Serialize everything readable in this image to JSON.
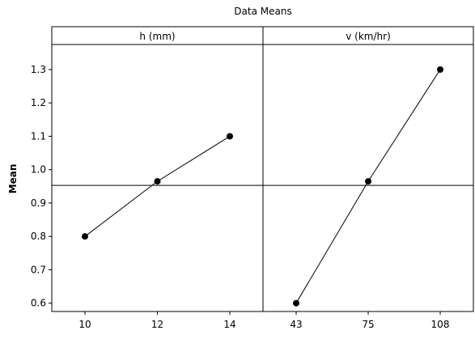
{
  "chart_data": {
    "type": "line",
    "title": "Data Means",
    "ylabel": "Mean",
    "ylim": [
      0.575,
      1.375
    ],
    "yticks": [
      0.6,
      0.7,
      0.8,
      0.9,
      1.0,
      1.1,
      1.2,
      1.3
    ],
    "ytick_labels": [
      "0.6",
      "0.7",
      "0.8",
      "0.9",
      "1.0",
      "1.1",
      "1.2",
      "1.3"
    ],
    "reference_line": 0.953,
    "panels": [
      {
        "label": "h (mm)",
        "categories": [
          "10",
          "12",
          "14"
        ],
        "values": [
          0.8,
          0.965,
          1.1
        ]
      },
      {
        "label": "v (km/hr)",
        "categories": [
          "43",
          "75",
          "108"
        ],
        "values": [
          0.6,
          0.965,
          1.3
        ]
      }
    ]
  }
}
